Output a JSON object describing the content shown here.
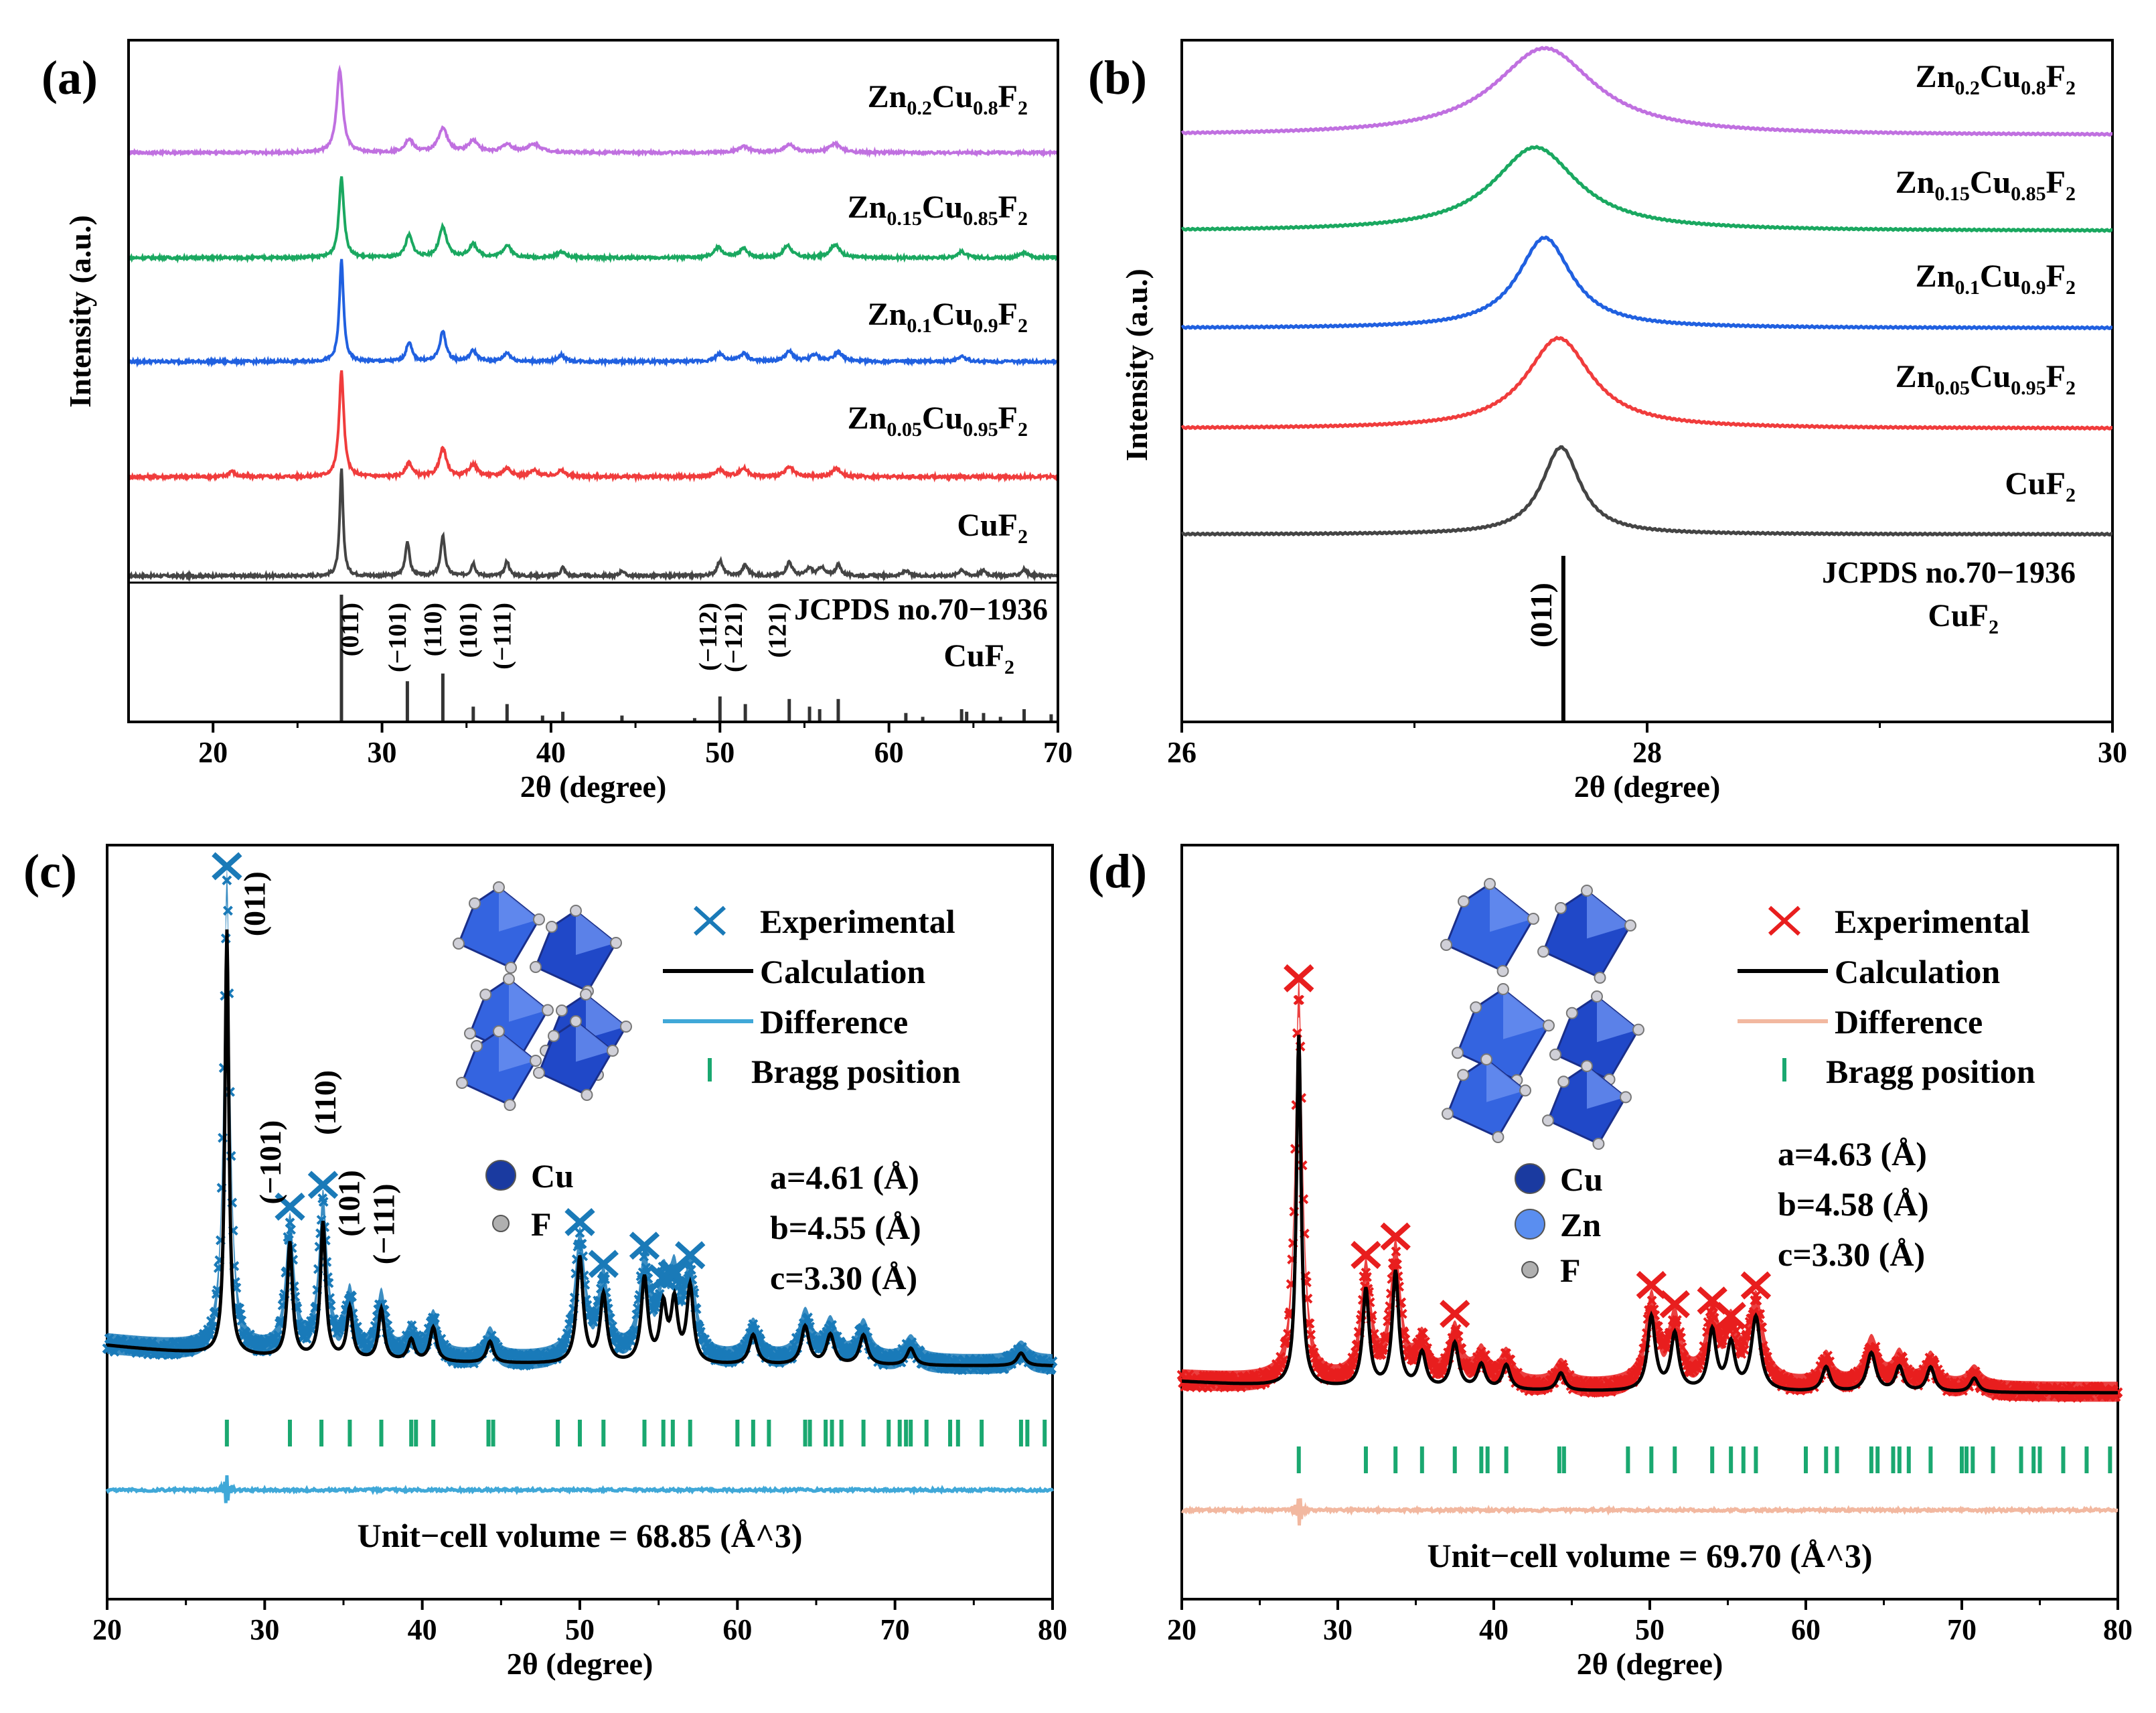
{
  "chart_data": [
    {
      "panel": "(a)",
      "type": "line",
      "xlabel": "2θ (degree)",
      "ylabel": "Intensity (a.u.)",
      "xlim": [
        15,
        70
      ],
      "xticks": [
        20,
        30,
        40,
        50,
        60,
        70
      ],
      "series": [
        {
          "name": "CuF2",
          "label_main": "CuF",
          "label_sub1": "2",
          "color": "#444444",
          "offset": 0,
          "peaks": [
            [
              27.6,
              1.0,
              0.12
            ],
            [
              31.5,
              0.32,
              0.15
            ],
            [
              33.6,
              0.38,
              0.15
            ],
            [
              35.4,
              0.12,
              0.15
            ],
            [
              37.4,
              0.14,
              0.15
            ],
            [
              40.7,
              0.08,
              0.15
            ],
            [
              44.2,
              0.05,
              0.15
            ],
            [
              50.0,
              0.14,
              0.2
            ],
            [
              51.5,
              0.1,
              0.2
            ],
            [
              54.1,
              0.13,
              0.2
            ],
            [
              55.3,
              0.07,
              0.2
            ],
            [
              56.0,
              0.08,
              0.2
            ],
            [
              57.0,
              0.1,
              0.2
            ],
            [
              61.0,
              0.05,
              0.2
            ],
            [
              64.3,
              0.06,
              0.2
            ],
            [
              65.6,
              0.05,
              0.2
            ],
            [
              68.0,
              0.06,
              0.2
            ]
          ]
        },
        {
          "name": "Zn0.05Cu0.95F2",
          "label_main": "Zn",
          "label_sub1": "0.05",
          "label_mid": "Cu",
          "label_sub2": "0.95",
          "label_end": "F",
          "label_sub3": "2",
          "color": "#f03c3c",
          "offset": 1,
          "peaks": [
            [
              21.1,
              0.05,
              0.2
            ],
            [
              27.6,
              0.9,
              0.17
            ],
            [
              31.6,
              0.12,
              0.22
            ],
            [
              33.6,
              0.24,
              0.25
            ],
            [
              35.4,
              0.1,
              0.3
            ],
            [
              37.4,
              0.07,
              0.3
            ],
            [
              39.0,
              0.05,
              0.3
            ],
            [
              40.6,
              0.05,
              0.3
            ],
            [
              50.0,
              0.06,
              0.3
            ],
            [
              51.4,
              0.07,
              0.3
            ],
            [
              54.1,
              0.08,
              0.3
            ],
            [
              56.9,
              0.07,
              0.3
            ]
          ]
        },
        {
          "name": "Zn0.1Cu0.9F2",
          "label_main": "Zn",
          "label_sub1": "0.1",
          "label_mid": "Cu",
          "label_sub2": "0.9",
          "label_end": "F",
          "label_sub3": "2",
          "color": "#2060e0",
          "offset": 2,
          "peaks": [
            [
              27.6,
              0.95,
              0.15
            ],
            [
              31.6,
              0.18,
              0.2
            ],
            [
              33.6,
              0.28,
              0.22
            ],
            [
              35.4,
              0.1,
              0.25
            ],
            [
              37.4,
              0.08,
              0.25
            ],
            [
              40.6,
              0.06,
              0.25
            ],
            [
              50.0,
              0.07,
              0.3
            ],
            [
              51.4,
              0.07,
              0.3
            ],
            [
              54.1,
              0.09,
              0.3
            ],
            [
              55.6,
              0.06,
              0.3
            ],
            [
              57.0,
              0.09,
              0.3
            ],
            [
              64.3,
              0.05,
              0.3
            ]
          ]
        },
        {
          "name": "Zn0.15Cu0.85F2",
          "label_main": "Zn",
          "label_sub1": "0.15",
          "label_mid": "Cu",
          "label_sub2": "0.85",
          "label_end": "F",
          "label_sub3": "2",
          "color": "#1aa860",
          "offset": 3,
          "peaks": [
            [
              27.6,
              0.8,
              0.18
            ],
            [
              31.6,
              0.22,
              0.25
            ],
            [
              33.6,
              0.3,
              0.27
            ],
            [
              35.4,
              0.13,
              0.3
            ],
            [
              37.4,
              0.12,
              0.3
            ],
            [
              40.6,
              0.06,
              0.3
            ],
            [
              49.9,
              0.1,
              0.3
            ],
            [
              51.4,
              0.09,
              0.3
            ],
            [
              54.0,
              0.12,
              0.3
            ],
            [
              56.8,
              0.13,
              0.35
            ],
            [
              64.3,
              0.06,
              0.3
            ],
            [
              68.0,
              0.05,
              0.3
            ]
          ]
        },
        {
          "name": "Zn0.2Cu0.8F2",
          "label_main": "Zn",
          "label_sub1": "0.2",
          "label_mid": "Cu",
          "label_sub2": "0.8",
          "label_end": "F",
          "label_sub3": "2",
          "color": "#c070e0",
          "offset": 4,
          "peaks": [
            [
              27.5,
              0.85,
              0.22
            ],
            [
              31.6,
              0.13,
              0.3
            ],
            [
              33.6,
              0.25,
              0.32
            ],
            [
              35.4,
              0.12,
              0.35
            ],
            [
              37.4,
              0.08,
              0.35
            ],
            [
              39.0,
              0.08,
              0.5
            ],
            [
              51.4,
              0.06,
              0.4
            ],
            [
              54.1,
              0.08,
              0.4
            ],
            [
              56.8,
              0.09,
              0.4
            ]
          ]
        }
      ],
      "reference": {
        "label1": "JCPDS no.70−1936",
        "label2_main": "CuF",
        "label2_sub": "2",
        "sticks": [
          [
            27.6,
            1.0
          ],
          [
            31.5,
            0.32
          ],
          [
            33.6,
            0.38
          ],
          [
            35.4,
            0.12
          ],
          [
            37.4,
            0.14
          ],
          [
            39.5,
            0.05
          ],
          [
            40.7,
            0.08
          ],
          [
            44.2,
            0.05
          ],
          [
            48.5,
            0.03
          ],
          [
            50.0,
            0.2
          ],
          [
            51.5,
            0.14
          ],
          [
            54.1,
            0.18
          ],
          [
            55.3,
            0.12
          ],
          [
            55.9,
            0.1
          ],
          [
            57.0,
            0.18
          ],
          [
            61.0,
            0.07
          ],
          [
            62.0,
            0.04
          ],
          [
            64.3,
            0.1
          ],
          [
            64.6,
            0.08
          ],
          [
            65.6,
            0.07
          ],
          [
            66.6,
            0.04
          ],
          [
            68.0,
            0.1
          ],
          [
            69.6,
            0.06
          ]
        ],
        "hkl": [
          {
            "x": 28.6,
            "text": "(011)"
          },
          {
            "x": 31.4,
            "text": "(−101)"
          },
          {
            "x": 33.5,
            "text": "(110)"
          },
          {
            "x": 35.6,
            "text": "(101)"
          },
          {
            "x": 37.6,
            "text": "(−111)"
          },
          {
            "x": 49.8,
            "text": "(−112)"
          },
          {
            "x": 51.3,
            "text": "(−121)"
          },
          {
            "x": 53.9,
            "text": "(121)"
          }
        ]
      }
    },
    {
      "panel": "(b)",
      "type": "line",
      "xlabel": "2θ (degree)",
      "ylabel": "Intensity (a.u.)",
      "xlim": [
        26,
        30
      ],
      "xticks": [
        26,
        28,
        30
      ],
      "series": [
        {
          "name": "CuF2",
          "label_main": "CuF",
          "label_sub1": "2",
          "color": "#444444",
          "center": 27.63,
          "width": 0.1,
          "height": 1.0
        },
        {
          "name": "Zn0.05Cu0.95F2",
          "label_main": "Zn",
          "label_sub1": "0.05",
          "label_mid": "Cu",
          "label_sub2": "0.95",
          "label_end": "F",
          "label_sub3": "2",
          "color": "#f03c3c",
          "center": 27.62,
          "width": 0.17,
          "height": 1.0
        },
        {
          "name": "Zn0.1Cu0.9F2",
          "label_main": "Zn",
          "label_sub1": "0.1",
          "label_mid": "Cu",
          "label_sub2": "0.9",
          "label_end": "F",
          "label_sub3": "2",
          "color": "#2060e0",
          "center": 27.56,
          "width": 0.14,
          "height": 1.0
        },
        {
          "name": "Zn0.15Cu0.85F2",
          "label_main": "Zn",
          "label_sub1": "0.15",
          "label_mid": "Cu",
          "label_sub2": "0.85",
          "label_end": "F",
          "label_sub3": "2",
          "color": "#1aa860",
          "center": 27.52,
          "width": 0.22,
          "height": 1.0
        },
        {
          "name": "Zn0.2Cu0.8F2",
          "label_main": "Zn",
          "label_sub1": "0.2",
          "label_mid": "Cu",
          "label_sub2": "0.8",
          "label_end": "F",
          "label_sub3": "2",
          "color": "#c070e0",
          "center": 27.56,
          "width": 0.26,
          "height": 1.0
        }
      ],
      "reference": {
        "label1": "JCPDS no.70−1936",
        "label2_main": "CuF",
        "label2_sub": "2",
        "stick_x": 27.64,
        "hkl": "(011)"
      }
    },
    {
      "panel": "(c)",
      "type": "scatter",
      "xlabel": "2θ (degree)",
      "xlim": [
        20,
        80
      ],
      "xticks": [
        20,
        30,
        40,
        50,
        60,
        70,
        80
      ],
      "experimental_color": "#1a7ab8",
      "calc_color": "#000000",
      "diff_color": "#40a8d8",
      "bragg_color": "#1aa870",
      "legend": [
        "Experimental",
        "Calculation",
        "Difference",
        "Bragg position"
      ],
      "atoms": [
        {
          "name": "Cu",
          "color": "#1a3aa0"
        },
        {
          "name": "F",
          "color": "#b0b0b0"
        }
      ],
      "cell_a": "a=4.61 (Å)",
      "cell_b": "b=4.55 (Å)",
      "cell_c": "c=3.30 (Å)",
      "volume": "Unit−cell volume = 68.85 (Å^3)",
      "peaks": [
        [
          27.6,
          1.0,
          0.15
        ],
        [
          31.6,
          0.27,
          0.2
        ],
        [
          33.7,
          0.32,
          0.2
        ],
        [
          35.4,
          0.12,
          0.22
        ],
        [
          37.4,
          0.12,
          0.22
        ],
        [
          39.3,
          0.05,
          0.25
        ],
        [
          40.7,
          0.08,
          0.25
        ],
        [
          44.3,
          0.05,
          0.25
        ],
        [
          50.0,
          0.25,
          0.25
        ],
        [
          51.5,
          0.16,
          0.25
        ],
        [
          54.1,
          0.2,
          0.25
        ],
        [
          55.3,
          0.13,
          0.25
        ],
        [
          56.0,
          0.14,
          0.25
        ],
        [
          57.0,
          0.18,
          0.25
        ],
        [
          61.0,
          0.07,
          0.3
        ],
        [
          64.3,
          0.09,
          0.3
        ],
        [
          65.9,
          0.07,
          0.3
        ],
        [
          68.0,
          0.07,
          0.3
        ],
        [
          71.0,
          0.04,
          0.3
        ],
        [
          78.0,
          0.03,
          0.3
        ]
      ],
      "bragg": [
        27.6,
        31.6,
        33.6,
        35.4,
        37.4,
        39.3,
        39.6,
        40.7,
        44.2,
        44.5,
        48.6,
        50.0,
        51.5,
        54.1,
        55.3,
        55.9,
        57.0,
        60.0,
        61.0,
        62.0,
        64.3,
        64.6,
        65.6,
        66.0,
        66.6,
        68.0,
        69.6,
        70.3,
        70.7,
        71.0,
        72.0,
        73.5,
        74.0,
        75.5,
        78.0,
        78.4,
        79.5
      ],
      "hkl": [
        {
          "x": 30.0,
          "text": "(011)",
          "level": 0.93
        },
        {
          "x": 31.0,
          "text": "(−101)",
          "level": 0.35
        },
        {
          "x": 34.5,
          "text": "(110)",
          "level": 0.5
        },
        {
          "x": 36.0,
          "text": "(101)",
          "level": 0.28
        },
        {
          "x": 38.2,
          "text": "(−111)",
          "level": 0.22
        }
      ]
    },
    {
      "panel": "(d)",
      "type": "scatter",
      "xlabel": "2θ (degree)",
      "xlim": [
        20,
        80
      ],
      "xticks": [
        20,
        30,
        40,
        50,
        60,
        70,
        80
      ],
      "experimental_color": "#e81e1e",
      "calc_color": "#000000",
      "diff_color": "#f2b8a0",
      "bragg_color": "#1aa870",
      "legend": [
        "Experimental",
        "Calculation",
        "Difference",
        "Bragg position"
      ],
      "atoms": [
        {
          "name": "Cu",
          "color": "#1a3aa0"
        },
        {
          "name": "Zn",
          "color": "#5a8ef0"
        },
        {
          "name": "F",
          "color": "#b0b0b0"
        }
      ],
      "cell_a": "a=4.63 (Å)",
      "cell_b": "b=4.58 (Å)",
      "cell_c": "c=3.30 (Å)",
      "volume": "Unit−cell volume = 69.70 (Å^3)",
      "peaks": [
        [
          27.5,
          1.0,
          0.18
        ],
        [
          31.8,
          0.28,
          0.25
        ],
        [
          33.7,
          0.33,
          0.25
        ],
        [
          35.4,
          0.1,
          0.3
        ],
        [
          37.5,
          0.13,
          0.3
        ],
        [
          39.2,
          0.07,
          0.3
        ],
        [
          40.8,
          0.07,
          0.3
        ],
        [
          44.3,
          0.05,
          0.3
        ],
        [
          50.1,
          0.21,
          0.3
        ],
        [
          51.6,
          0.16,
          0.3
        ],
        [
          54.0,
          0.17,
          0.3
        ],
        [
          55.2,
          0.13,
          0.3
        ],
        [
          56.8,
          0.21,
          0.35
        ],
        [
          61.3,
          0.07,
          0.3
        ],
        [
          64.2,
          0.11,
          0.35
        ],
        [
          66.0,
          0.07,
          0.3
        ],
        [
          68.0,
          0.07,
          0.3
        ],
        [
          70.8,
          0.04,
          0.3
        ]
      ],
      "bragg": [
        27.5,
        31.8,
        33.7,
        35.4,
        37.5,
        39.2,
        39.6,
        40.8,
        44.2,
        44.5,
        48.6,
        50.1,
        51.6,
        54.0,
        55.2,
        56.0,
        56.8,
        60.0,
        61.3,
        62.0,
        64.2,
        64.6,
        65.6,
        66.0,
        66.6,
        68.0,
        70.0,
        70.3,
        70.7,
        72.0,
        73.8,
        74.6,
        75.0,
        76.5,
        78.0,
        79.5
      ],
      "hkl": []
    }
  ]
}
